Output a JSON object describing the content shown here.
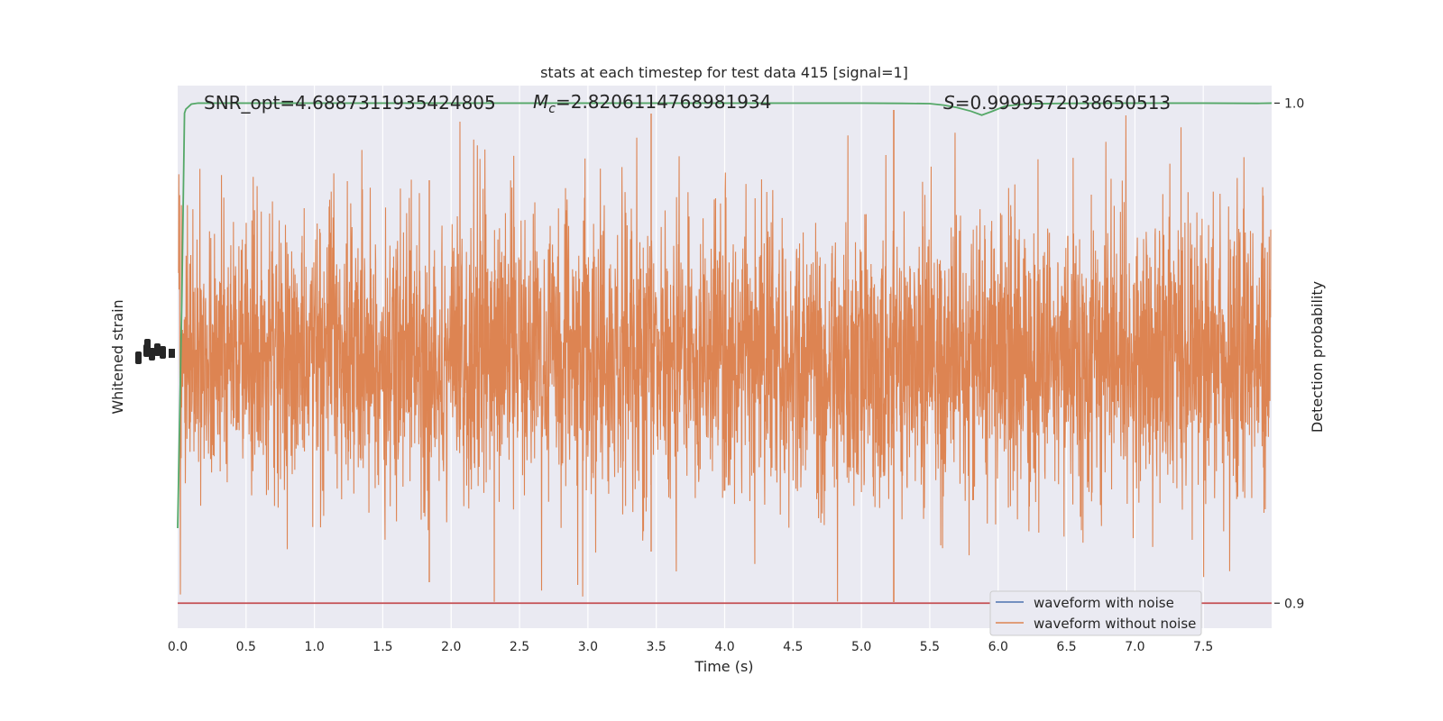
{
  "chart_data": {
    "type": "line",
    "title": "stats at each timestep for test data 415 [signal=1]",
    "xlabel": "Time (s)",
    "ylabel_left": "Whitened strain",
    "ylabel_right": "Detection probability",
    "xlim": [
      0,
      8
    ],
    "x_ticks": [
      "0.0",
      "0.5",
      "1.0",
      "1.5",
      "2.0",
      "2.5",
      "3.0",
      "3.5",
      "4.0",
      "4.5",
      "5.0",
      "5.5",
      "6.0",
      "6.5",
      "7.0",
      "7.5"
    ],
    "x_tick_values": [
      0,
      0.5,
      1,
      1.5,
      2,
      2.5,
      3,
      3.5,
      4,
      4.5,
      5,
      5.5,
      6,
      6.5,
      7,
      7.5
    ],
    "right_ylim": [
      0.895,
      1.0035
    ],
    "right_ticks": [
      "0.9",
      "1.0"
    ],
    "right_tick_values": [
      0.9,
      1.0
    ],
    "annotations": {
      "snr": "SNR_opt=4.6887311935424805",
      "mc_sym": "M",
      "mc_sub": "c",
      "mc_val": "=2.8206114768981934",
      "s_sym": "S",
      "s_val": "=0.9999572038650513"
    },
    "threshold": 0.9,
    "series": [
      {
        "name": "waveform with noise",
        "color": "#4c72b0",
        "axis": "left"
      },
      {
        "name": "waveform without noise",
        "color": "#dd8452",
        "axis": "left"
      }
    ],
    "detection_probability": {
      "color": "#55a868",
      "x": [
        0.0,
        0.03,
        0.05,
        0.06,
        0.1,
        0.15,
        0.5,
        1.0,
        2.0,
        3.0,
        4.0,
        5.0,
        5.3,
        5.5,
        5.6,
        5.7,
        5.8,
        5.88,
        5.95,
        6.05,
        6.2,
        6.5,
        7.0,
        7.5,
        7.9,
        8.0
      ],
      "y": [
        0.915,
        0.96,
        0.998,
        0.9988,
        0.9998,
        1.0,
        1.0,
        1.0,
        1.0,
        1.0,
        1.0,
        1.0,
        0.99995,
        0.9999,
        0.9996,
        0.9991,
        0.9984,
        0.9976,
        0.9983,
        0.9994,
        0.99985,
        0.99995,
        1.0,
        1.0,
        0.99995,
        1.0
      ]
    },
    "grid": true,
    "legend_position": "lower right"
  },
  "colors": {
    "plot_bg": "#eaeaf2",
    "grid": "#ffffff",
    "threshold_line": "#c44e52"
  }
}
